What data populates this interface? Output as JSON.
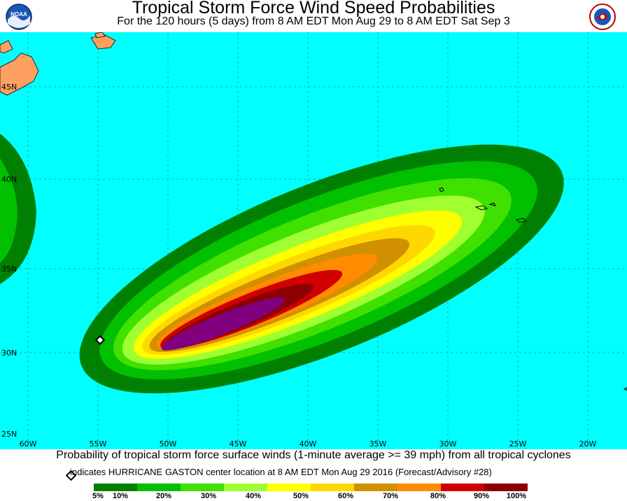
{
  "header": {
    "title": "Tropical Storm Force Wind Speed Probabilities",
    "subtitle": "For the 120 hours (5 days) from 8 AM EDT Mon Aug 29 to 8 AM EDT Sat Sep 3"
  },
  "logos": {
    "left": "NOAA",
    "right": "National Weather Service"
  },
  "map": {
    "ocean_color": "#00FFFF",
    "land_color": "#FFA060",
    "lat_labels": [
      "45N",
      "40N",
      "35N",
      "30N",
      "25N"
    ],
    "lon_labels": [
      "60W",
      "55W",
      "50W",
      "45W",
      "40W",
      "35W",
      "30W",
      "25W",
      "20W"
    ],
    "storm_marker": "HURRICANE GASTON center location"
  },
  "caption": "Probability of tropical storm force surface winds (1-minute average >= 39 mph) from all tropical cyclones",
  "note": "indicates HURRICANE GASTON center location at 8 AM EDT Mon Aug 29 2016 (Forecast/Advisory #28)",
  "legend": {
    "labels": [
      "5%",
      "10%",
      "20%",
      "30%",
      "40%",
      "50%",
      "60%",
      "70%",
      "80%",
      "90%",
      "100%"
    ],
    "colors": [
      "#008000",
      "#00C000",
      "#40E000",
      "#A0FF30",
      "#FFFF00",
      "#FFD700",
      "#D09000",
      "#FF8C00",
      "#D00000",
      "#8B0000",
      "#800080"
    ]
  }
}
